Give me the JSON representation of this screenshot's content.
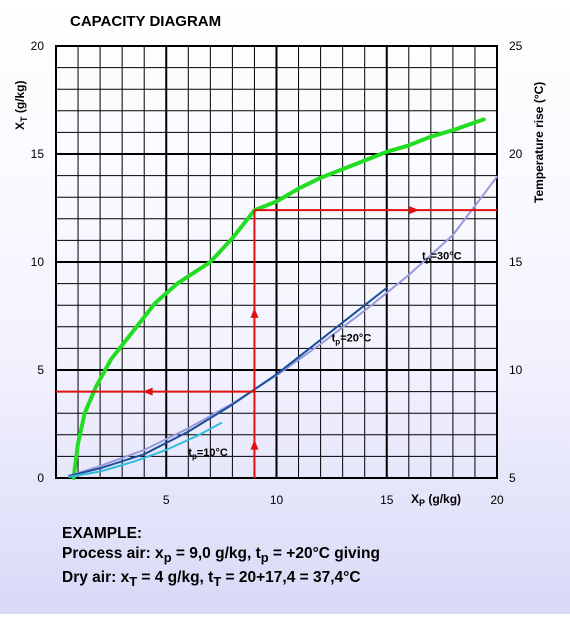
{
  "chart_data": {
    "type": "line",
    "title": "CAPACITY DIAGRAM",
    "xlabel": {
      "main": "X",
      "sub": "P",
      "rest": " (g/kg)"
    },
    "ylabel": {
      "main": "X",
      "sub": "T",
      "rest": " (g/kg)"
    },
    "y2label": "Temperature rise (°C)",
    "xlim": [
      0,
      20
    ],
    "ylim": [
      0,
      20
    ],
    "y2lim": [
      5,
      25
    ],
    "x_ticks": [
      5,
      10,
      15,
      20
    ],
    "y_ticks": [
      0,
      5,
      10,
      15,
      20
    ],
    "y2_ticks": [
      5,
      10,
      15,
      20,
      25
    ],
    "grid": true,
    "series": [
      {
        "color": "#22dd22",
        "axis": "y2",
        "x": [
          0.8,
          1.0,
          1.3,
          1.8,
          2.5,
          3.5,
          4.5,
          5.5,
          7.0,
          8.0,
          9.0,
          10.0,
          11.0,
          12.0,
          13.0,
          14.0,
          15.0,
          16.0,
          17.0,
          18.0,
          19.4
        ],
        "y": [
          5.0,
          6.6,
          8.0,
          9.2,
          10.5,
          11.8,
          13.1,
          14.0,
          15.0,
          16.1,
          17.4,
          17.8,
          18.4,
          18.9,
          19.3,
          19.7,
          20.1,
          20.4,
          20.8,
          21.1,
          21.6
        ]
      },
      {
        "name": "t_p=30°C",
        "color": "#9999dd",
        "x": [
          0.6,
          2,
          4,
          6,
          8,
          10,
          12,
          14,
          16,
          18,
          20
        ],
        "y": [
          0.1,
          0.55,
          1.3,
          2.3,
          3.45,
          4.75,
          6.2,
          7.75,
          9.4,
          11.25,
          13.95
        ]
      },
      {
        "name": "t_p=20°C",
        "color": "#1a4f9a",
        "x": [
          0.6,
          2,
          4,
          6,
          8,
          10,
          12,
          14,
          15
        ],
        "y": [
          0.1,
          0.45,
          1.1,
          2.15,
          3.4,
          4.8,
          6.4,
          8.0,
          8.8
        ]
      },
      {
        "name": "t_p=10°C",
        "color": "#33bbdd",
        "x": [
          0.6,
          2,
          3.5,
          5,
          6.5,
          7.5
        ],
        "y": [
          0.05,
          0.3,
          0.75,
          1.3,
          2.0,
          2.55
        ]
      }
    ],
    "annotations": {
      "t10": {
        "base": "t",
        "sub": "p",
        "rest": "=10°C"
      },
      "t20": {
        "base": "t",
        "sub": "p",
        "rest": "=20°C"
      },
      "t30": {
        "base": "t",
        "sub": "p",
        "rest": "=30°C"
      }
    },
    "example_lines": {
      "x_process": 9.0,
      "y_dry": 4.0,
      "temp_rise": 17.4,
      "color": "#e01010"
    }
  },
  "example": {
    "heading": "EXAMPLE:",
    "line1": {
      "t1": "Process air: x",
      "s1": "p",
      "t2": " = 9,0 g/kg, t",
      "s2": "p",
      "t3": " = +20°C giving"
    },
    "line2": {
      "t1": "Dry air: x",
      "s1": "T",
      "t2": " = 4 g/kg, t",
      "s2": "T",
      "t3": " = 20+17,4 = 37,4°C"
    }
  }
}
